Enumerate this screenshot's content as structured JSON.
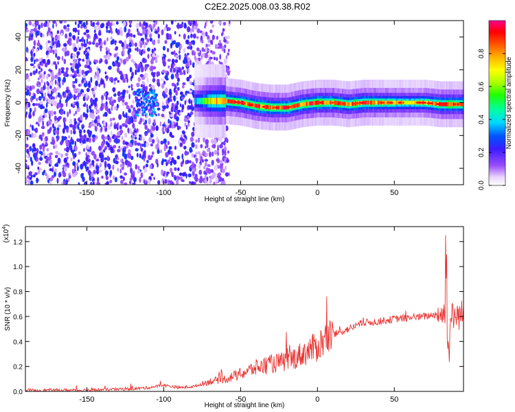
{
  "title": "C2E2.2025.008.03.38.R02",
  "chart_data": [
    {
      "type": "heatmap",
      "xlabel": "Height of straight line (km)",
      "ylabel": "Frequency (Hz)",
      "xlim": [
        -190,
        95
      ],
      "ylim": [
        -50,
        50
      ],
      "xticks": [
        -150,
        -100,
        -50,
        0,
        50
      ],
      "yticks": [
        -40,
        -20,
        0,
        20,
        40
      ],
      "colorbar": {
        "label": "Normalized spectral amplitude",
        "ticks": [
          0.0,
          0.2,
          0.4,
          0.6,
          0.8
        ],
        "range": [
          0,
          1
        ],
        "colormap": "rainbow (white-purple-blue-cyan-green-yellow-orange-red-magenta)"
      },
      "description_series": {
        "ridge": {
          "x": [
            -80,
            -70,
            -60,
            -50,
            -40,
            -30,
            -20,
            -10,
            0,
            10,
            20,
            30,
            40,
            50,
            60,
            70,
            80,
            90,
            95
          ],
          "freq": [
            1,
            1,
            1,
            0,
            -2,
            -3,
            -3,
            -1,
            0,
            0,
            -1,
            0,
            0,
            0,
            0,
            0,
            -1,
            -1,
            -1
          ],
          "peak_amplitude": [
            0.35,
            0.7,
            0.8,
            0.85,
            0.85,
            0.85,
            0.85,
            0.85,
            0.85,
            0.85,
            0.8,
            0.85,
            0.8,
            0.75,
            0.7,
            0.75,
            0.85,
            0.85,
            0.85
          ]
        },
        "noise_region": {
          "x_range": [
            -190,
            -65
          ],
          "amplitude": 0.15
        }
      }
    },
    {
      "type": "line",
      "xlabel": "Height of straight line (km)",
      "ylabel": "SNR (10 * v/v)",
      "y_scale_label": "(x10",
      "y_scale_exponent": "4",
      "xlim": [
        -190,
        95
      ],
      "ylim": [
        0,
        1.32
      ],
      "xticks": [
        -150,
        -100,
        -50,
        0,
        50
      ],
      "yticks": [
        "0.0",
        "0.2",
        "0.4",
        "0.6",
        "0.8",
        "1.0",
        "1.2"
      ],
      "color": "#e8312e",
      "series": [
        {
          "x": [
            -190,
            -150,
            -120,
            -110,
            -100,
            -90,
            -80,
            -75,
            -70,
            -60,
            -50,
            -40,
            -30,
            -20,
            -10,
            0,
            5,
            10,
            20,
            30,
            40,
            50,
            60,
            70,
            78,
            80,
            82,
            85,
            88,
            90,
            95
          ],
          "values": [
            0.01,
            0.01,
            0.02,
            0.03,
            0.05,
            0.03,
            0.04,
            0.06,
            0.08,
            0.1,
            0.14,
            0.19,
            0.22,
            0.24,
            0.3,
            0.36,
            0.42,
            0.45,
            0.5,
            0.55,
            0.56,
            0.58,
            0.59,
            0.6,
            0.62,
            0.62,
            0.62,
            0.58,
            0.6,
            0.6,
            0.62
          ]
        }
      ]
    }
  ]
}
